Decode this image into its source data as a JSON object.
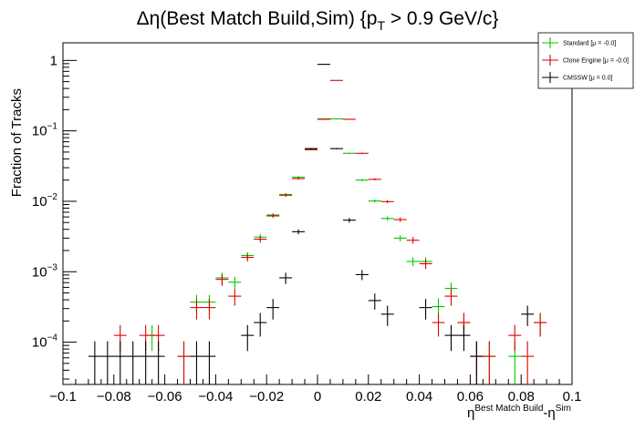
{
  "chart_data": {
    "type": "scatter",
    "title_main": "Δη(Best Match Build,Sim) {p",
    "title_sub": "T",
    "title_rest": " > 0.9 GeV/c}",
    "ylabel": "Fraction of Tracks",
    "xlabel_main": "η",
    "xlabel_sup1": "Best Match Build",
    "xlabel_mid": "-η",
    "xlabel_sup2": "Sim",
    "xlim": [
      -0.1,
      0.1
    ],
    "ylim_log10": [
      -4.6,
      0.25
    ],
    "yscale": "log",
    "x_ticks": [
      {
        "v": -0.1,
        "label": "−0.1"
      },
      {
        "v": -0.08,
        "label": "−0.08"
      },
      {
        "v": -0.06,
        "label": "−0.06"
      },
      {
        "v": -0.04,
        "label": "−0.04"
      },
      {
        "v": -0.02,
        "label": "−0.02"
      },
      {
        "v": 0,
        "label": "0"
      },
      {
        "v": 0.02,
        "label": "0.02"
      },
      {
        "v": 0.04,
        "label": "0.04"
      },
      {
        "v": 0.06,
        "label": "0.06"
      },
      {
        "v": 0.08,
        "label": "0.08"
      },
      {
        "v": 0.1,
        "label": "0.1"
      }
    ],
    "y_ticks": [
      {
        "exp": 0,
        "base": "1",
        "sup": ""
      },
      {
        "exp": -1,
        "base": "10",
        "sup": "−1"
      },
      {
        "exp": -2,
        "base": "10",
        "sup": "−2"
      },
      {
        "exp": -3,
        "base": "10",
        "sup": "−3"
      },
      {
        "exp": -4,
        "base": "10",
        "sup": "−4"
      }
    ],
    "bin_halfwidth": 0.0025,
    "series": [
      {
        "name": "Standard",
        "stats": "[μ = -0.0]",
        "color": "#00c800",
        "points": [
          [
            -0.065,
            0.000125,
            5e-05
          ],
          [
            -0.0525,
            6.3e-05,
            4e-05
          ],
          [
            -0.0475,
            0.00037,
            0.0001
          ],
          [
            -0.0425,
            0.00037,
            0.0001
          ],
          [
            -0.0375,
            0.00082,
            0.00015
          ],
          [
            -0.0325,
            0.00071,
            0.00014
          ],
          [
            -0.0275,
            0.0017,
            0.0002
          ],
          [
            -0.0225,
            0.0031,
            0.0003
          ],
          [
            -0.0175,
            0.0064,
            0.0004
          ],
          [
            -0.0125,
            0.0125,
            0.0006
          ],
          [
            -0.0075,
            0.022,
            0.0008
          ],
          [
            -0.0025,
            0.055,
            0.0012
          ],
          [
            0.0025,
            0.148,
            0.002
          ],
          [
            0.0075,
            0.148,
            0.002
          ],
          [
            0.0125,
            0.048,
            0.0011
          ],
          [
            0.0175,
            0.02,
            0.0007
          ],
          [
            0.0225,
            0.0101,
            0.0005
          ],
          [
            0.0275,
            0.0057,
            0.0004
          ],
          [
            0.0325,
            0.003,
            0.0003
          ],
          [
            0.0375,
            0.0014,
            0.0002
          ],
          [
            0.0425,
            0.0014,
            0.0002
          ],
          [
            0.0475,
            0.00032,
            0.0001
          ],
          [
            0.0525,
            0.00058,
            0.00012
          ],
          [
            0.0575,
            0.00019,
            7e-05
          ],
          [
            0.0675,
            6.3e-05,
            4e-05
          ],
          [
            0.0775,
            6.3e-05,
            4e-05
          ],
          [
            0.0875,
            0.00019,
            7e-05
          ]
        ]
      },
      {
        "name": "Clone Engine",
        "stats": "[μ = -0.0]",
        "color": "#e00000",
        "points": [
          [
            -0.0775,
            0.000125,
            5e-05
          ],
          [
            -0.0675,
            0.000125,
            5e-05
          ],
          [
            -0.0625,
            0.000125,
            5e-05
          ],
          [
            -0.0525,
            6.3e-05,
            4e-05
          ],
          [
            -0.0475,
            0.00031,
            0.0001
          ],
          [
            -0.0425,
            0.00031,
            0.0001
          ],
          [
            -0.0375,
            0.00078,
            0.00015
          ],
          [
            -0.0325,
            0.00045,
            0.00012
          ],
          [
            -0.0275,
            0.0016,
            0.0002
          ],
          [
            -0.0225,
            0.0029,
            0.0003
          ],
          [
            -0.0175,
            0.0062,
            0.0004
          ],
          [
            -0.0125,
            0.0122,
            0.0006
          ],
          [
            -0.0075,
            0.021,
            0.0008
          ],
          [
            -0.0025,
            0.054,
            0.0012
          ],
          [
            0.0025,
            0.146,
            0.002
          ],
          [
            0.0075,
            0.52,
            0.004
          ],
          [
            0.0125,
            0.146,
            0.002
          ],
          [
            0.0175,
            0.048,
            0.0011
          ],
          [
            0.0225,
            0.0205,
            0.0007
          ],
          [
            0.0275,
            0.0099,
            0.0005
          ],
          [
            0.0325,
            0.0055,
            0.0004
          ],
          [
            0.0375,
            0.0028,
            0.0003
          ],
          [
            0.0425,
            0.0013,
            0.0002
          ],
          [
            0.0475,
            0.00019,
            7e-05
          ],
          [
            0.0525,
            0.00045,
            0.00012
          ],
          [
            0.0575,
            0.00019,
            7e-05
          ],
          [
            0.0625,
            6.3e-05,
            4e-05
          ],
          [
            0.0675,
            6.3e-05,
            4e-05
          ],
          [
            0.0775,
            0.000125,
            5e-05
          ],
          [
            0.0825,
            6.3e-05,
            4e-05
          ],
          [
            0.0875,
            0.00019,
            7e-05
          ]
        ]
      },
      {
        "name": "CMSSW",
        "stats": "[μ = 0.0]",
        "color": "#000000",
        "points": [
          [
            -0.0875,
            6.3e-05,
            4e-05
          ],
          [
            -0.0825,
            6.3e-05,
            4e-05
          ],
          [
            -0.0775,
            6.3e-05,
            4e-05
          ],
          [
            -0.0725,
            6.3e-05,
            4e-05
          ],
          [
            -0.0675,
            6.3e-05,
            4e-05
          ],
          [
            -0.0625,
            6.3e-05,
            4e-05
          ],
          [
            -0.0475,
            6.3e-05,
            4e-05
          ],
          [
            -0.0425,
            6.3e-05,
            4e-05
          ],
          [
            -0.0275,
            0.000125,
            5e-05
          ],
          [
            -0.0225,
            0.00019,
            7e-05
          ],
          [
            -0.0175,
            0.00031,
            0.0001
          ],
          [
            -0.0125,
            0.00082,
            0.00015
          ],
          [
            -0.0075,
            0.0037,
            0.0003
          ],
          [
            -0.0025,
            0.056,
            0.0012
          ],
          [
            0.0025,
            0.88,
            0.005
          ],
          [
            0.0075,
            0.056,
            0.0012
          ],
          [
            0.0125,
            0.0054,
            0.0004
          ],
          [
            0.0175,
            0.00091,
            0.00015
          ],
          [
            0.0225,
            0.00039,
            0.0001
          ],
          [
            0.0275,
            0.00025,
            8e-05
          ],
          [
            0.0425,
            0.00031,
            0.0001
          ],
          [
            0.0525,
            0.000125,
            5e-05
          ],
          [
            0.0575,
            0.000125,
            5e-05
          ],
          [
            0.0625,
            6.3e-05,
            4e-05
          ],
          [
            0.0825,
            0.00025,
            8e-05
          ]
        ]
      }
    ],
    "legend_position": "top-right",
    "grid": false
  }
}
